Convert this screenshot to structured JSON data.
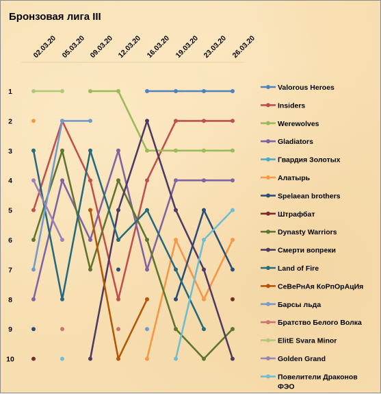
{
  "chart_data": {
    "type": "line",
    "title": "Бронзовая лига III",
    "x": [
      "02.03.20",
      "05.03.20",
      "09.03.20",
      "12.03.20",
      "16.03.20",
      "19.03.20",
      "23.03.20",
      "26.03.20"
    ],
    "y_ticks": [
      1,
      2,
      3,
      4,
      5,
      6,
      7,
      8,
      9,
      10
    ],
    "ylim": [
      1,
      10
    ],
    "y_reversed": true,
    "grid": false,
    "legend_position": "right",
    "series": [
      {
        "name": "Valorous Heroes",
        "color": "#4f81bd",
        "values": [
          null,
          null,
          null,
          null,
          1,
          1,
          1,
          1
        ]
      },
      {
        "name": "Insiders",
        "color": "#c0504d",
        "values": [
          5,
          2,
          4,
          8,
          4,
          2,
          2,
          2
        ]
      },
      {
        "name": "Werewolves",
        "color": "#9bbb59",
        "values": [
          null,
          null,
          1,
          1,
          3,
          3,
          3,
          3
        ]
      },
      {
        "name": "Gladiators",
        "color": "#8064a2",
        "values": [
          8,
          4,
          6,
          3,
          7,
          4,
          4,
          4
        ]
      },
      {
        "name": "Гвардия Золотых",
        "color": "#4bacc6",
        "values": [
          null,
          null,
          null,
          null,
          null,
          null,
          null,
          null
        ]
      },
      {
        "name": "Алатырь",
        "color": "#f79646",
        "values": [
          2,
          null,
          null,
          null,
          10,
          6,
          8,
          6
        ]
      },
      {
        "name": "Spelaean brothers",
        "color": "#2c4d75",
        "values": [
          9,
          null,
          null,
          7,
          null,
          8,
          5,
          7
        ]
      },
      {
        "name": "Штрафбат",
        "color": "#772c2a",
        "values": [
          10,
          null,
          null,
          null,
          null,
          null,
          null,
          8
        ]
      },
      {
        "name": "Dynasty Warriors",
        "color": "#5f7530",
        "values": [
          6,
          3,
          7,
          4,
          6,
          9,
          10,
          9
        ]
      },
      {
        "name": "Смерти вопреки",
        "color": "#4d3b62",
        "values": [
          null,
          null,
          10,
          5,
          2,
          5,
          7,
          10
        ]
      },
      {
        "name": "Land of Fire",
        "color": "#276a7c",
        "values": [
          3,
          8,
          3,
          6,
          5,
          7,
          9,
          null
        ]
      },
      {
        "name": "СеВеРнАя КоРпОрАцИя",
        "color": "#b65708",
        "values": [
          null,
          null,
          5,
          10,
          8,
          null,
          null,
          null
        ]
      },
      {
        "name": "Барсы льда",
        "color": "#729aca",
        "values": [
          7,
          2,
          2,
          null,
          9,
          null,
          null,
          null
        ]
      },
      {
        "name": "Братство Белого Волка",
        "color": "#cd7371",
        "values": [
          null,
          9,
          null,
          9,
          null,
          null,
          null,
          null
        ]
      },
      {
        "name": "ElitE Svara Minor",
        "color": "#afc97a",
        "values": [
          1,
          1,
          null,
          null,
          null,
          null,
          null,
          null
        ]
      },
      {
        "name": "Golden Grand",
        "color": "#9983b5",
        "values": [
          4,
          6,
          null,
          null,
          null,
          null,
          null,
          null
        ]
      },
      {
        "name": "Повелители Драконов ФЭО",
        "color": "#6fbdd1",
        "values": [
          null,
          10,
          null,
          null,
          null,
          10,
          6,
          5
        ]
      }
    ]
  },
  "ui": {
    "title": "Бронзовая лига III",
    "x_labels": [
      "02.03.20",
      "05.03.20",
      "09.03.20",
      "12.03.20",
      "16.03.20",
      "19.03.20",
      "23.03.20",
      "26.03.20"
    ],
    "y_labels": [
      "1",
      "2",
      "3",
      "4",
      "5",
      "6",
      "7",
      "8",
      "9",
      "10"
    ],
    "legend": [
      {
        "label": "Valorous Heroes",
        "color": "#4f81bd"
      },
      {
        "label": "Insiders",
        "color": "#c0504d"
      },
      {
        "label": "Werewolves",
        "color": "#9bbb59"
      },
      {
        "label": "Gladiators",
        "color": "#8064a2"
      },
      {
        "label": "Гвардия Золотых",
        "color": "#4bacc6"
      },
      {
        "label": "Алатырь",
        "color": "#f79646"
      },
      {
        "label": "Spelaean brothers",
        "color": "#2c4d75"
      },
      {
        "label": "Штрафбат",
        "color": "#772c2a"
      },
      {
        "label": "Dynasty Warriors",
        "color": "#5f7530"
      },
      {
        "label": "Смерти вопреки",
        "color": "#4d3b62"
      },
      {
        "label": "Land of Fire",
        "color": "#276a7c"
      },
      {
        "label": "СеВеРнАя КоРпОрАцИя",
        "color": "#b65708"
      },
      {
        "label": "Барсы льда",
        "color": "#729aca"
      },
      {
        "label": "Братство Белого Волка",
        "color": "#cd7371"
      },
      {
        "label": "ElitE Svara Minor",
        "color": "#afc97a"
      },
      {
        "label": "Golden Grand",
        "color": "#9983b5"
      },
      {
        "label": "Повелители Драконов",
        "label_line2": "ФЭО",
        "color": "#6fbdd1"
      }
    ]
  }
}
